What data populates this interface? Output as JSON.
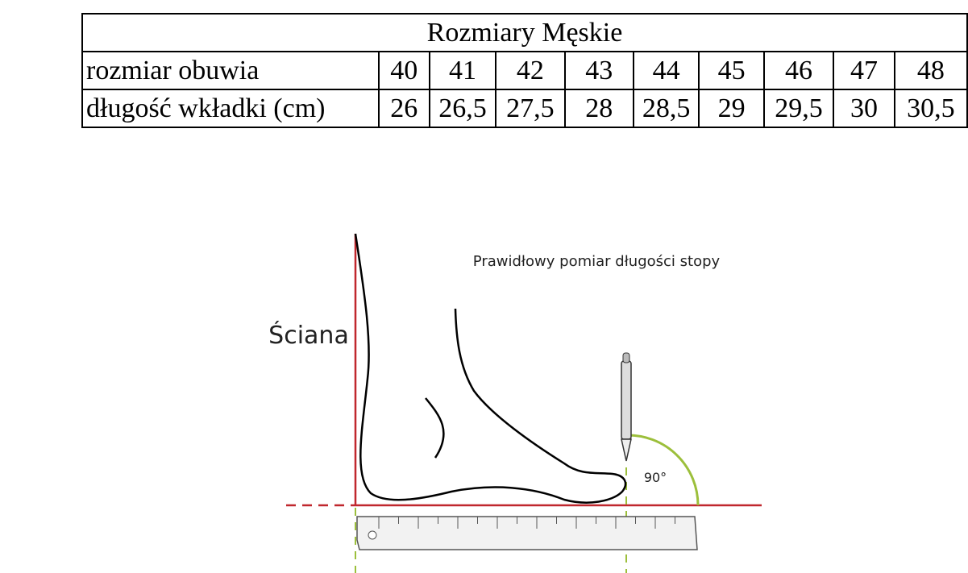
{
  "table": {
    "title": "Rozmiary Męskie",
    "rows": [
      [
        "rozmiar obuwia",
        "40",
        "41",
        "42",
        "43",
        "44",
        "45",
        "46",
        "47",
        "48"
      ],
      [
        "długość wkładki (cm)",
        "26",
        "26,5",
        "27,5",
        "28",
        "28,5",
        "29",
        "29,5",
        "30",
        "30,5"
      ]
    ]
  },
  "diagram": {
    "caption": "Prawidłowy pomiar długości stopy",
    "wall_label": "Ściana",
    "angle_label": "90°"
  }
}
